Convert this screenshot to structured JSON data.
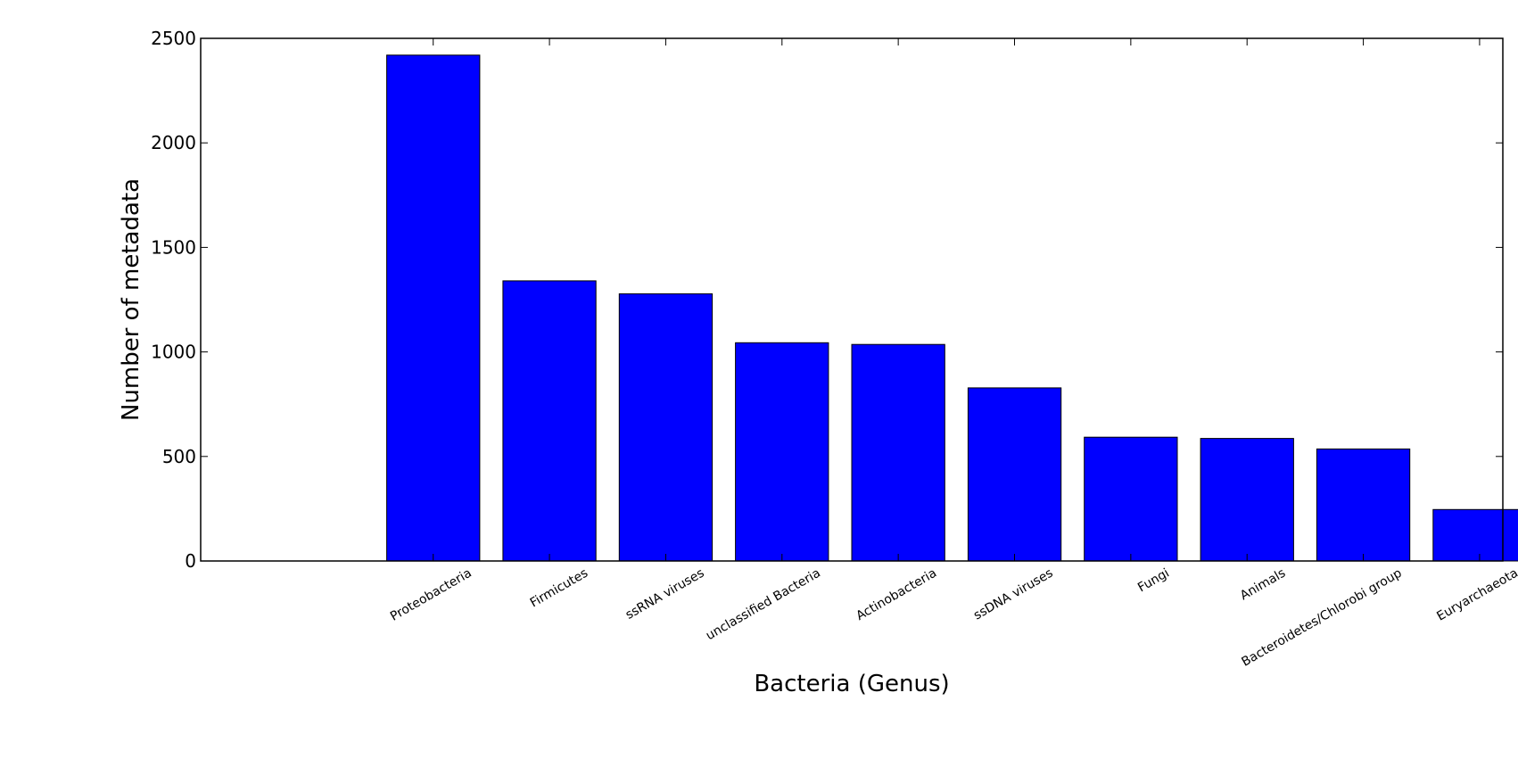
{
  "chart_data": {
    "type": "bar",
    "title": "",
    "xlabel": "Bacteria (Genus)",
    "ylabel": "Number of metadata",
    "categories": [
      "Proteobacteria",
      "Firmicutes",
      "ssRNA viruses",
      "unclassified Bacteria",
      "Actinobacteria",
      "ssDNA viruses",
      "Fungi",
      "Animals",
      "Bacteroidetes/Chlorobi group",
      "Euryarchaeota"
    ],
    "values": [
      2420,
      1340,
      1278,
      1044,
      1036,
      828,
      592,
      586,
      536,
      246
    ],
    "ylim": [
      0,
      2500
    ],
    "yticks": [
      "0",
      "500",
      "1000",
      "1500",
      "2000",
      "2500"
    ],
    "grid": false,
    "legend": "none",
    "bar_color": "#0000ff",
    "edge_color": "#000000"
  }
}
